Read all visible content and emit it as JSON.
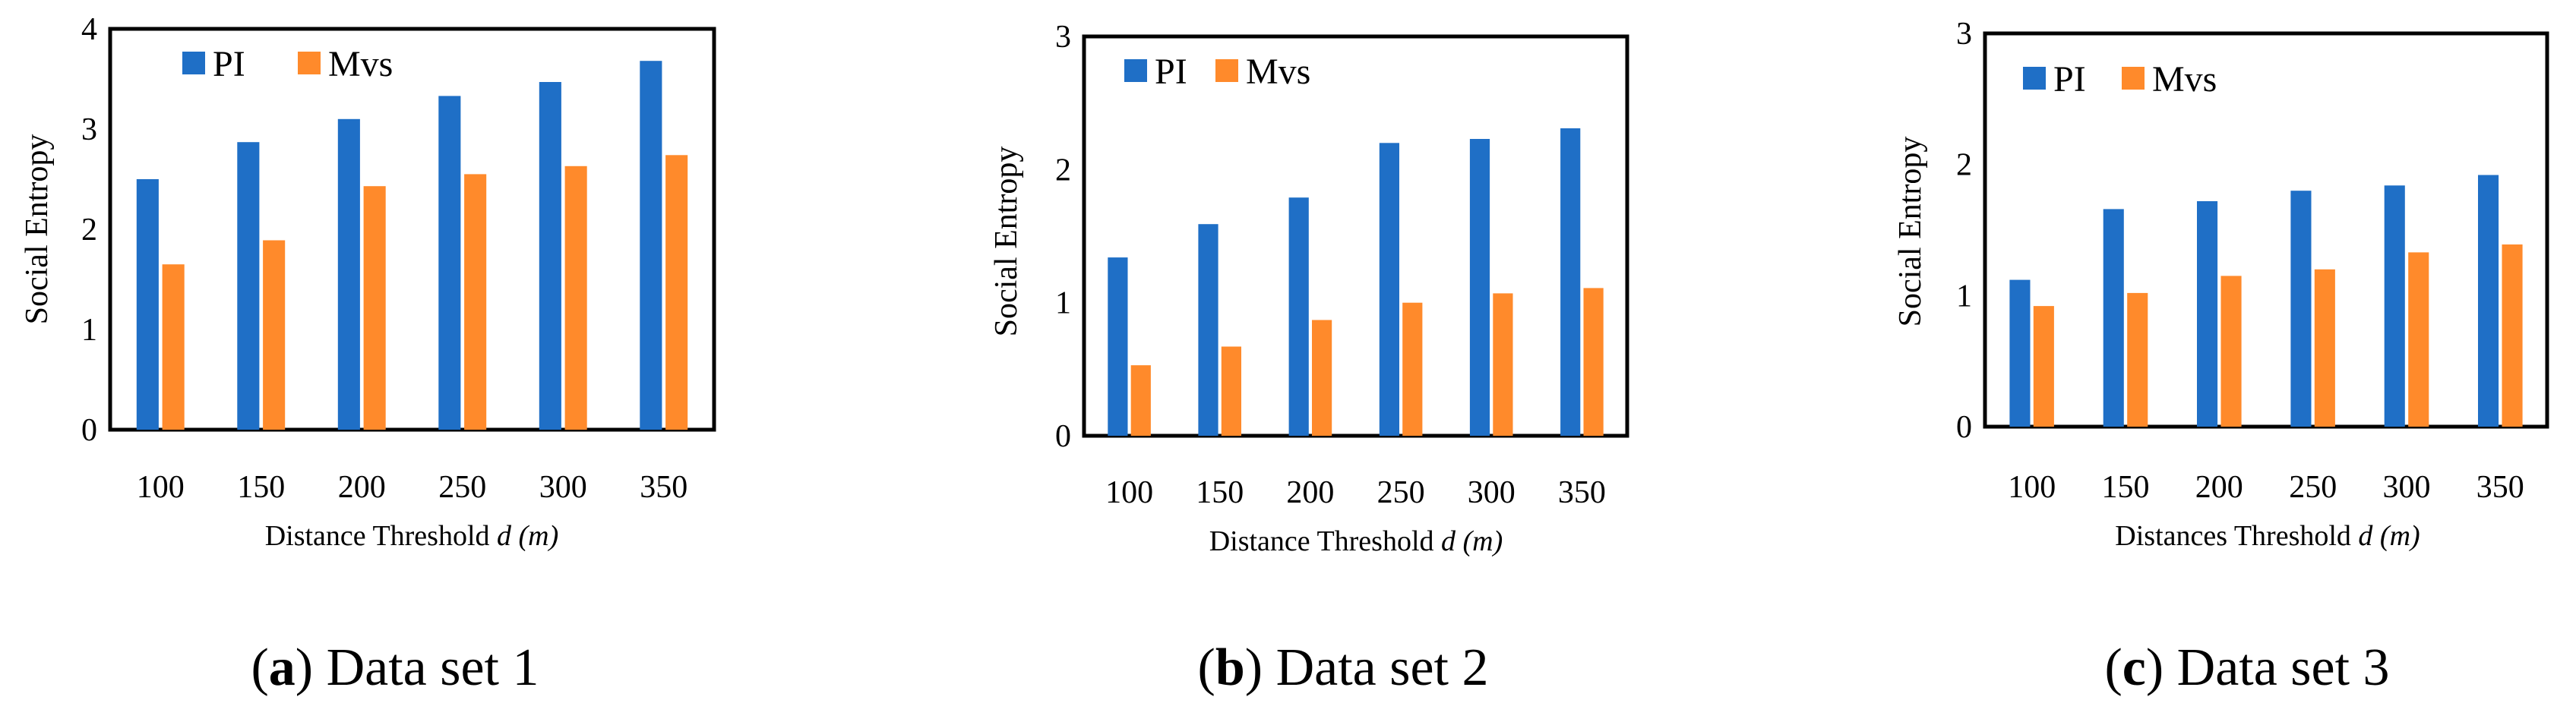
{
  "chart_data": [
    {
      "type": "bar",
      "title": "",
      "caption": {
        "letter": "a",
        "text": "Data set 1"
      },
      "xlabel": "Distance Threshold",
      "xlabel_var": "d",
      "xlabel_unit": "(m)",
      "ylabel": "Social Entropy",
      "ylim": [
        0,
        4
      ],
      "yticks": [
        "0",
        "1",
        "2",
        "3",
        "4"
      ],
      "categories": [
        "100",
        "150",
        "200",
        "250",
        "300",
        "350"
      ],
      "series": [
        {
          "name": "PI",
          "color": "#1f6fc6",
          "values": [
            2.5,
            2.87,
            3.1,
            3.33,
            3.47,
            3.68
          ]
        },
        {
          "name": "Mvs",
          "color": "#ff8a2b",
          "values": [
            1.65,
            1.89,
            2.43,
            2.55,
            2.63,
            2.74
          ]
        }
      ]
    },
    {
      "type": "bar",
      "title": "",
      "caption": {
        "letter": "b",
        "text": "Data set 2"
      },
      "xlabel": "Distance Threshold",
      "xlabel_var": "d",
      "xlabel_unit": "(m)",
      "ylabel": "Social Entropy",
      "ylim": [
        0,
        3
      ],
      "yticks": [
        "0",
        "1",
        "2",
        "3"
      ],
      "categories": [
        "100",
        "150",
        "200",
        "250",
        "300",
        "350"
      ],
      "series": [
        {
          "name": "PI",
          "color": "#1f6fc6",
          "values": [
            1.34,
            1.59,
            1.79,
            2.2,
            2.23,
            2.31
          ]
        },
        {
          "name": "Mvs",
          "color": "#ff8a2b",
          "values": [
            0.53,
            0.67,
            0.87,
            1.0,
            1.07,
            1.11
          ]
        }
      ]
    },
    {
      "type": "bar",
      "title": "",
      "caption": {
        "letter": "c",
        "text": "Data set 3"
      },
      "xlabel": "Distances Threshold",
      "xlabel_var": "d",
      "xlabel_unit": "(m)",
      "ylabel": "Social Entropy",
      "ylim": [
        0,
        3
      ],
      "yticks": [
        "0",
        "1",
        "2",
        "3"
      ],
      "categories": [
        "100",
        "150",
        "200",
        "250",
        "300",
        "350"
      ],
      "series": [
        {
          "name": "PI",
          "color": "#1f6fc6",
          "values": [
            1.12,
            1.66,
            1.72,
            1.8,
            1.84,
            1.92
          ]
        },
        {
          "name": "Mvs",
          "color": "#ff8a2b",
          "values": [
            0.92,
            1.02,
            1.15,
            1.2,
            1.33,
            1.39
          ]
        }
      ]
    }
  ]
}
